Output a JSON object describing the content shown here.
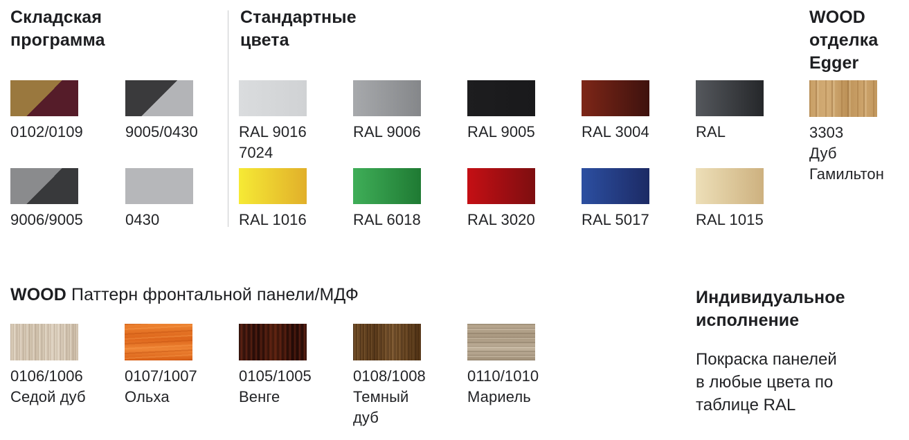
{
  "warehouse": {
    "title": "Складская\nпрограмма",
    "items": [
      {
        "code": "0102/0109",
        "type": "diagonal",
        "top_left": "#9a783e",
        "bottom_right": "#551c29"
      },
      {
        "code": "9005/0430",
        "type": "diagonal",
        "top_left": "#3a3a3c",
        "bottom_right": "#b3b4b7"
      },
      {
        "code": "9006/9005",
        "type": "diagonal",
        "top_left": "#8a8b8d",
        "bottom_right": "#38393b"
      },
      {
        "code": "0430",
        "type": "solid",
        "color": "#b6b7ba"
      }
    ]
  },
  "standard": {
    "title": "Стандартные\nцвета",
    "items": [
      {
        "code": "RAL 9016\n7024",
        "from": "#dadcde",
        "to": "#d0d2d4"
      },
      {
        "code": "RAL 9006",
        "from": "#a7a9ac",
        "to": "#85878a"
      },
      {
        "code": "RAL 9005",
        "from": "#1d1d1f",
        "to": "#19191b"
      },
      {
        "code": "RAL 3004",
        "from": "#7d2617",
        "to": "#3e120e"
      },
      {
        "code": "RAL",
        "from": "#55585d",
        "to": "#25272a"
      },
      {
        "code": "RAL 1016",
        "from": "#f6ea35",
        "to": "#e1af2a"
      },
      {
        "code": "RAL 6018",
        "from": "#3fae58",
        "to": "#1f7a33"
      },
      {
        "code": "RAL 3020",
        "from": "#c50f14",
        "to": "#7d0e10"
      },
      {
        "code": "RAL 5017",
        "from": "#2c4fa1",
        "to": "#1c2a64"
      },
      {
        "code": "RAL 1015",
        "from": "#eddfb8",
        "to": "#cdb17f"
      }
    ]
  },
  "egger": {
    "title": "WOOD\nотделка\nEgger",
    "label": "3303\nДуб\nГамильтон",
    "texture": "egger",
    "base_color": "#c9a067"
  },
  "wood_panel": {
    "title_bold": "WOOD",
    "title_rest": " Паттерн фронтальной панели/МДФ",
    "items": [
      {
        "code": "0106/1006",
        "name": "Седой дуб",
        "texture": "grey-oak",
        "base_color": "#d3c5b1"
      },
      {
        "code": "0107/1007",
        "name": "Ольха",
        "texture": "alder",
        "base_color": "#e4701f"
      },
      {
        "code": "0105/1005",
        "name": "Венге",
        "texture": "wenge",
        "base_color": "#3a140c"
      },
      {
        "code": "0108/1008",
        "name": "Темный\nдуб",
        "texture": "dark-oak",
        "base_color": "#63421f"
      },
      {
        "code": "0110/1010",
        "name": "Мариель",
        "texture": "mariel",
        "base_color": "#b0a089"
      }
    ]
  },
  "custom": {
    "title": "Индивидуальное\nисполнение",
    "body": "Покраска панелей\nв любые цвета по\nтаблице RAL"
  }
}
